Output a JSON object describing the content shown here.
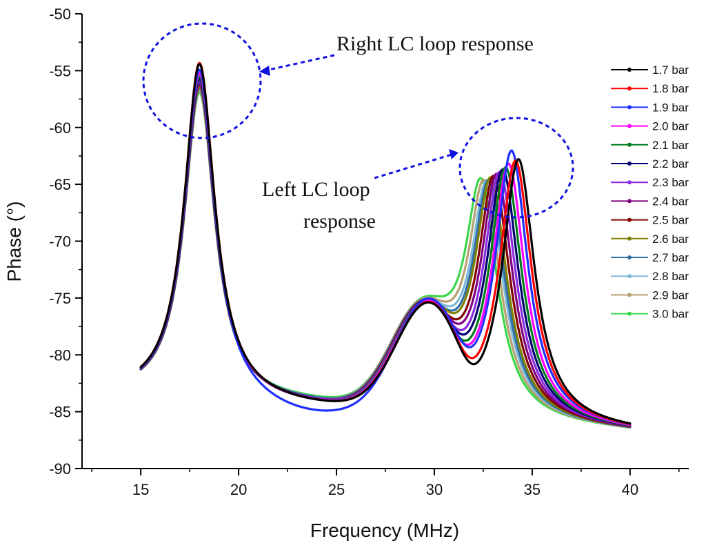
{
  "chart_data": {
    "type": "line",
    "title": "",
    "xlabel": "Frequency (MHz)",
    "ylabel": "Phase (°)",
    "xlim": [
      12,
      43
    ],
    "ylim": [
      -90,
      -50
    ],
    "xticks": [
      15,
      20,
      25,
      30,
      35,
      40
    ],
    "yticks": [
      -90,
      -85,
      -80,
      -75,
      -70,
      -65,
      -60,
      -55,
      -50
    ],
    "grid": false,
    "legend_position": "right",
    "annotations": [
      {
        "id": "right",
        "text": "Right LC loop response",
        "target": "first resonance peak near 18 MHz"
      },
      {
        "id": "left",
        "text_lines": [
          "Left LC loop",
          "response"
        ],
        "target": "second resonance peak near 33–34 MHz"
      }
    ],
    "series_model": {
      "x_range": [
        15,
        40
      ],
      "baseline_start": -83.8,
      "baseline_end": -86.8,
      "peak1_center_mhz": 18
    },
    "series": [
      {
        "name": "1.7 bar",
        "color": "#000000",
        "peak1": -54.5,
        "peak2_freq": 34.3,
        "peak2_phase": -61.0,
        "dip_phase": -80.0,
        "hump_freq": 29.6,
        "hump_phase": -75.0,
        "valley_phase": -85.5
      },
      {
        "name": "1.8 bar",
        "color": "#ff0000",
        "peak1": -54.4,
        "peak2_freq": 34.15,
        "peak2_phase": -61.2,
        "dip_phase": -79.6,
        "hump_freq": 29.6,
        "hump_phase": -75.0,
        "valley_phase": -85.5
      },
      {
        "name": "1.9 bar",
        "color": "#1f2fff",
        "peak1": -55.0,
        "peak2_freq": 33.95,
        "peak2_phase": -60.3,
        "dip_phase": -79.0,
        "hump_freq": 29.6,
        "hump_phase": -74.8,
        "valley_phase": -86.5
      },
      {
        "name": "2.0 bar",
        "color": "#ff00ff",
        "peak1": -55.3,
        "peak2_freq": 33.8,
        "peak2_phase": -61.6,
        "dip_phase": -78.7,
        "hump_freq": 29.55,
        "hump_phase": -75.0,
        "valley_phase": -85.5
      },
      {
        "name": "2.1 bar",
        "color": "#007a1a",
        "peak1": -55.6,
        "peak2_freq": 33.65,
        "peak2_phase": -62.0,
        "dip_phase": -78.4,
        "hump_freq": 29.5,
        "hump_phase": -75.1,
        "valley_phase": -85.5
      },
      {
        "name": "2.2 bar",
        "color": "#00006e",
        "peak1": -55.8,
        "peak2_freq": 33.5,
        "peak2_phase": -62.3,
        "dip_phase": -78.1,
        "hump_freq": 29.5,
        "hump_phase": -75.2,
        "valley_phase": -85.5
      },
      {
        "name": "2.3 bar",
        "color": "#8a2be2",
        "peak1": -56.0,
        "peak2_freq": 33.35,
        "peak2_phase": -62.6,
        "dip_phase": -77.8,
        "hump_freq": 29.45,
        "hump_phase": -75.2,
        "valley_phase": -85.4
      },
      {
        "name": "2.4 bar",
        "color": "#800080",
        "peak1": -56.2,
        "peak2_freq": 33.2,
        "peak2_phase": -62.9,
        "dip_phase": -77.5,
        "hump_freq": 29.45,
        "hump_phase": -75.3,
        "valley_phase": -85.4
      },
      {
        "name": "2.5 bar",
        "color": "#800000",
        "peak1": -56.3,
        "peak2_freq": 33.05,
        "peak2_phase": -63.2,
        "dip_phase": -77.2,
        "hump_freq": 29.4,
        "hump_phase": -75.3,
        "valley_phase": -85.4
      },
      {
        "name": "2.6 bar",
        "color": "#808000",
        "peak1": -56.5,
        "peak2_freq": 32.9,
        "peak2_phase": -63.5,
        "dip_phase": -76.9,
        "hump_freq": 29.4,
        "hump_phase": -75.4,
        "valley_phase": -85.4
      },
      {
        "name": "2.7 bar",
        "color": "#2f6fa8",
        "peak1": -56.6,
        "peak2_freq": 32.8,
        "peak2_phase": -63.8,
        "dip_phase": -76.6,
        "hump_freq": 29.35,
        "hump_phase": -75.4,
        "valley_phase": -85.3
      },
      {
        "name": "2.8 bar",
        "color": "#7fb8d8",
        "peak1": -56.7,
        "peak2_freq": 32.7,
        "peak2_phase": -64.0,
        "dip_phase": -76.3,
        "hump_freq": 29.35,
        "hump_phase": -75.5,
        "valley_phase": -85.3
      },
      {
        "name": "2.9 bar",
        "color": "#b5a070",
        "peak1": -56.8,
        "peak2_freq": 32.55,
        "peak2_phase": -64.1,
        "dip_phase": -76.0,
        "hump_freq": 29.3,
        "hump_phase": -75.5,
        "valley_phase": -85.3
      },
      {
        "name": "3.0 bar",
        "color": "#3ad64a",
        "peak1": -57.0,
        "peak2_freq": 32.4,
        "peak2_phase": -64.2,
        "dip_phase": -75.8,
        "hump_freq": 29.3,
        "hump_phase": -75.6,
        "valley_phase": -85.2
      }
    ]
  }
}
